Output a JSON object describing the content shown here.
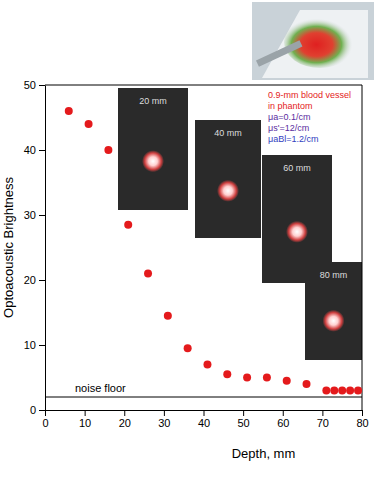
{
  "chart_data": {
    "type": "scatter",
    "x_label": "Depth, mm",
    "y_label": "Optoacoustic Brightness",
    "x": [
      6,
      11,
      16,
      21,
      26,
      31,
      36,
      41,
      46,
      51,
      56,
      61,
      66,
      71,
      73,
      75,
      77,
      79
    ],
    "series": [
      {
        "name": "0.9-mm blood vessel",
        "color": "#e41a1c",
        "marker": "circle",
        "values": [
          46,
          44,
          40,
          28.5,
          21,
          14.5,
          9.5,
          7,
          5.5,
          5,
          5,
          4.5,
          4,
          3,
          3,
          3,
          3,
          3
        ]
      }
    ],
    "xlim": [
      0,
      80
    ],
    "xticks": [
      0,
      10,
      20,
      30,
      40,
      50,
      60,
      70,
      80
    ],
    "ylim": [
      0,
      50
    ],
    "yticks": [
      0,
      10,
      20,
      30,
      40,
      50
    ],
    "grid": false,
    "annotations": [
      {
        "text": "noise floor",
        "y": 2
      }
    ],
    "legend_lines": [
      {
        "text": "0.9-mm blood vessel",
        "color": "#e41a1c"
      },
      {
        "text": "in phantom",
        "color": "#e41a1c"
      },
      {
        "text": "μa=0.1/cm",
        "color": "#5a2ca0"
      },
      {
        "text": "μs'=12/cm",
        "color": "#5a2ca0"
      },
      {
        "text": "μaBl=1.2/cm",
        "color": "#3040c0"
      }
    ],
    "insets": [
      {
        "label": "20 mm"
      },
      {
        "label": "40 mm"
      },
      {
        "label": "60 mm"
      },
      {
        "label": "80 mm"
      }
    ]
  }
}
